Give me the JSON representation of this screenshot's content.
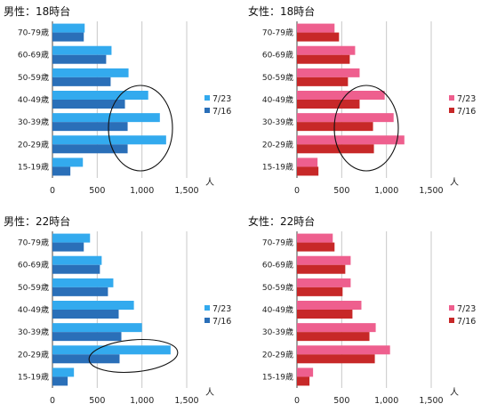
{
  "chart_data": [
    {
      "type": "bar",
      "orientation": "horizontal",
      "title": "男性：18時台",
      "categories": [
        "70-79歳",
        "60-69歳",
        "50-59歳",
        "40-49歳",
        "30-39歳",
        "20-29歳",
        "15-19歳"
      ],
      "series": [
        {
          "name": "7/23",
          "color": "#33aaee",
          "values": [
            360,
            660,
            850,
            1070,
            1200,
            1270,
            340
          ]
        },
        {
          "name": "7/16",
          "color": "#2a6fb8",
          "values": [
            350,
            600,
            650,
            810,
            840,
            840,
            200
          ]
        }
      ],
      "xlim": [
        0,
        1500
      ],
      "xticks": [
        "0",
        "500",
        "1,000",
        "1,500"
      ],
      "unit": "人",
      "highlight": "ellipse"
    },
    {
      "type": "bar",
      "orientation": "horizontal",
      "title": "女性：18時台",
      "categories": [
        "70-79歳",
        "60-69歳",
        "50-59歳",
        "40-49歳",
        "30-39歳",
        "20-29歳",
        "15-19歳"
      ],
      "series": [
        {
          "name": "7/23",
          "color": "#ee5f8e",
          "values": [
            420,
            650,
            700,
            980,
            1080,
            1200,
            230
          ]
        },
        {
          "name": "7/16",
          "color": "#c72828",
          "values": [
            470,
            590,
            570,
            700,
            850,
            860,
            240
          ]
        }
      ],
      "xlim": [
        0,
        1500
      ],
      "xticks": [
        "0",
        "500",
        "1,000",
        "1,500"
      ],
      "unit": "人",
      "highlight": "ellipse"
    },
    {
      "type": "bar",
      "orientation": "horizontal",
      "title": "男性：22時台",
      "categories": [
        "70-79歳",
        "60-69歳",
        "50-59歳",
        "40-49歳",
        "30-39歳",
        "20-29歳",
        "15-19歳"
      ],
      "series": [
        {
          "name": "7/23",
          "color": "#33aaee",
          "values": [
            420,
            550,
            680,
            910,
            1000,
            1320,
            240
          ]
        },
        {
          "name": "7/16",
          "color": "#2a6fb8",
          "values": [
            350,
            530,
            620,
            740,
            770,
            750,
            170
          ]
        }
      ],
      "xlim": [
        0,
        1500
      ],
      "xticks": [
        "0",
        "500",
        "1,000",
        "1,500"
      ],
      "unit": "人",
      "highlight": "ellipse"
    },
    {
      "type": "bar",
      "orientation": "horizontal",
      "title": "女性：22時台",
      "categories": [
        "70-79歳",
        "60-69歳",
        "50-59歳",
        "40-49歳",
        "30-39歳",
        "20-29歳",
        "15-19歳"
      ],
      "series": [
        {
          "name": "7/23",
          "color": "#ee5f8e",
          "values": [
            400,
            600,
            600,
            720,
            880,
            1040,
            180
          ]
        },
        {
          "name": "7/16",
          "color": "#c72828",
          "values": [
            420,
            540,
            510,
            620,
            810,
            870,
            140
          ]
        }
      ],
      "xlim": [
        0,
        1500
      ],
      "xticks": [
        "0",
        "500",
        "1,000",
        "1,500"
      ],
      "unit": "人",
      "highlight": "none"
    }
  ]
}
